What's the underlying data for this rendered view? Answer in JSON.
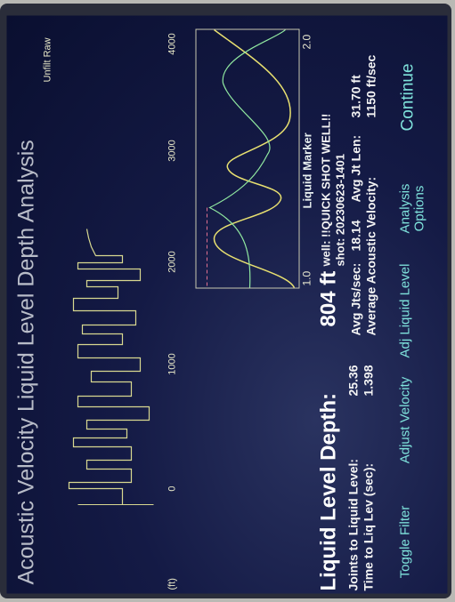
{
  "screen": {
    "title": "Acoustic Velocity Liquid Level Depth Analysis",
    "trace": {
      "axis_unit": "(ft)",
      "ticks": [
        "0",
        "1000",
        "2000",
        "3000",
        "4000"
      ],
      "mode": "Unfilt Raw"
    },
    "inset": {
      "xmin": "1.0",
      "xmax": "2.0",
      "label": "Liquid Marker"
    },
    "results": {
      "depth_label": "Liquid Level Depth:",
      "depth": "804 ft",
      "joints_label": "Joints to Liquid Level:",
      "joints": "25.36",
      "time_label": "Time to Liq Lev (sec):",
      "time": "1.398",
      "well": "well: !!QUICK SHOT WELL!!",
      "shot": "shot: 20230623-1401",
      "jts_sec_label": "Avg Jts/sec:",
      "jts_sec": "18.14",
      "jt_len_label": "Avg Jt Len:",
      "jt_len": "31.70 ft",
      "velocity_label": "Average Acoustic Velocity:",
      "velocity": "1150 ft/sec"
    },
    "buttons": [
      "Toggle Filter",
      "Adjust Velocity",
      "Adj Liquid Level",
      "Analysis Options",
      "Continue"
    ]
  }
}
